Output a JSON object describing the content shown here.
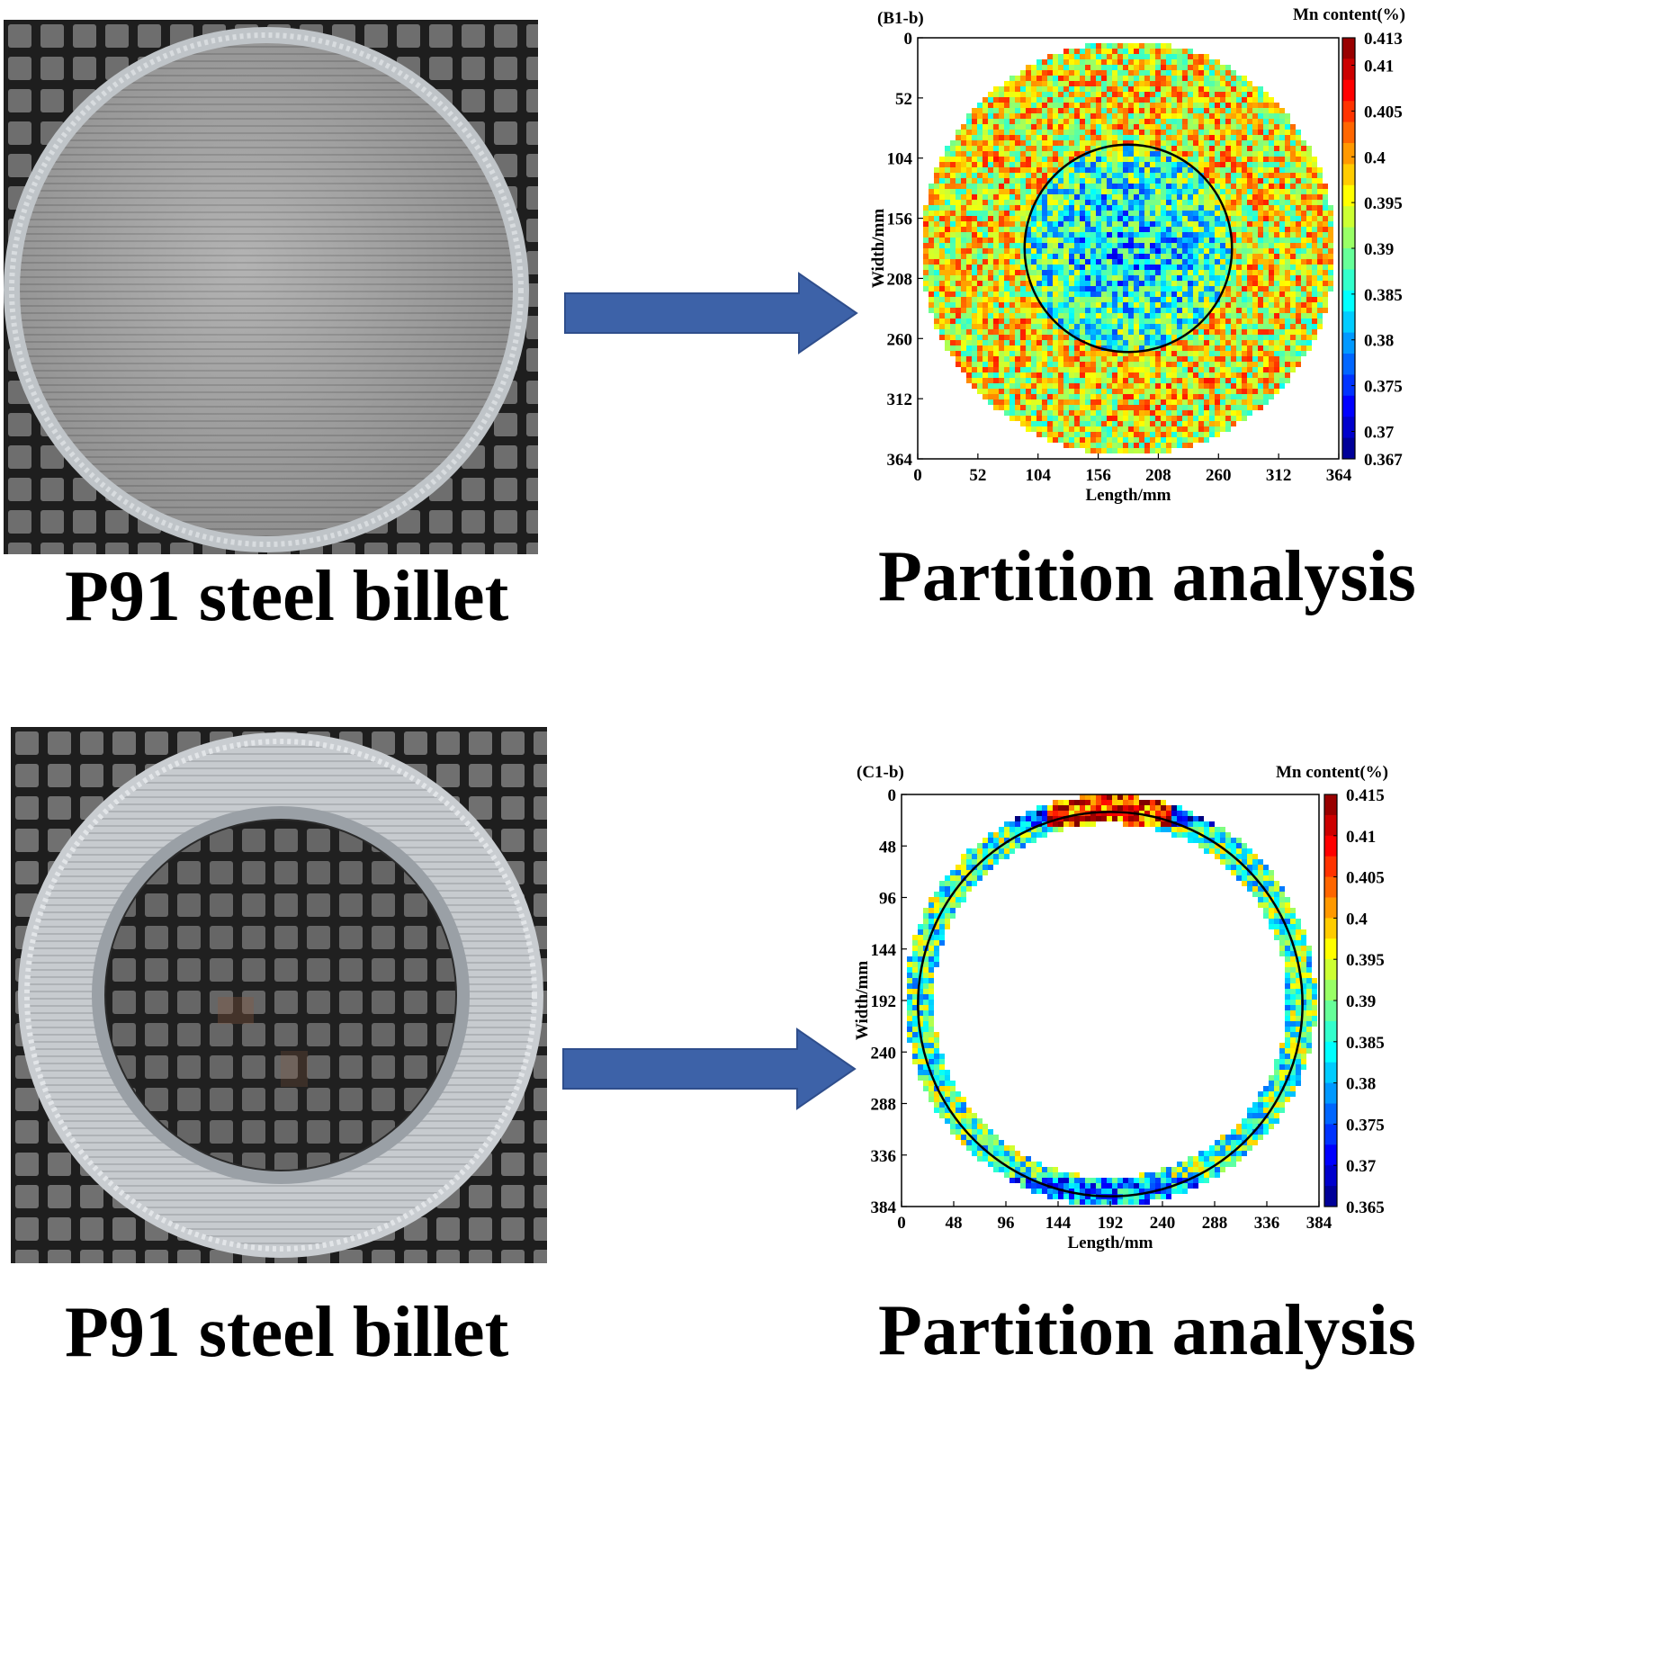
{
  "panels": [
    {
      "id": "B1",
      "photo_caption": "P91 steel billet",
      "analysis_caption": "Partition analysis",
      "plot_label": "(B1-b)",
      "colorbar_title": "Mn content(%)"
    },
    {
      "id": "C1",
      "photo_caption": "P91 steel billet",
      "analysis_caption": "Partition analysis",
      "plot_label": "(C1-b)",
      "colorbar_title": "Mn content(%)"
    }
  ],
  "chart_data": [
    {
      "type": "heatmap",
      "title": "(B1-b)",
      "xlabel": "Length/mm",
      "ylabel": "Width/mm",
      "xlim": [
        0,
        364
      ],
      "ylim": [
        364,
        0
      ],
      "x_ticks": [
        "0",
        "52",
        "104",
        "156",
        "208",
        "260",
        "312",
        "364"
      ],
      "y_ticks": [
        "0",
        "52",
        "104",
        "156",
        "208",
        "260",
        "312",
        "364"
      ],
      "colorbar_title": "Mn content(%)",
      "colorbar_range": [
        0.367,
        0.413
      ],
      "colorbar_ticks": [
        "0.413",
        "0.41",
        "0.405",
        "0.4",
        "0.395",
        "0.39",
        "0.385",
        "0.38",
        "0.375",
        "0.37",
        "0.367"
      ],
      "shape": "disk",
      "annotation": "black circle marking central region"
    },
    {
      "type": "heatmap",
      "title": "(C1-b)",
      "xlabel": "Length/mm",
      "ylabel": "Width/mm",
      "xlim": [
        0,
        384
      ],
      "ylim": [
        384,
        0
      ],
      "x_ticks": [
        "0",
        "48",
        "96",
        "144",
        "192",
        "240",
        "288",
        "336",
        "384"
      ],
      "y_ticks": [
        "0",
        "48",
        "96",
        "144",
        "192",
        "240",
        "288",
        "336",
        "384"
      ],
      "colorbar_title": "Mn content(%)",
      "colorbar_range": [
        0.365,
        0.415
      ],
      "colorbar_ticks": [
        "0.415",
        "0.41",
        "0.405",
        "0.4",
        "0.395",
        "0.39",
        "0.385",
        "0.38",
        "0.375",
        "0.37",
        "0.365"
      ],
      "shape": "ring",
      "annotation": "black circle along ring centerline"
    }
  ]
}
